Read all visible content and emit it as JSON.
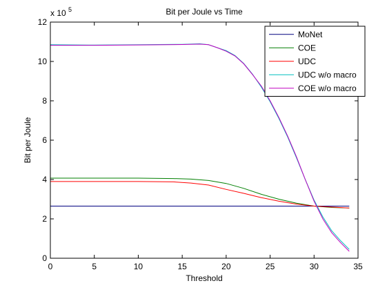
{
  "chart_data": {
    "type": "line",
    "title": "Bit per Joule vs Time",
    "xlabel": "Threshold",
    "ylabel": "Bit per Joule",
    "y_multiplier_label": "x 10",
    "y_multiplier_exponent": "5",
    "xlim": [
      0,
      35
    ],
    "ylim": [
      0,
      12
    ],
    "xticks": [
      0,
      5,
      10,
      15,
      20,
      25,
      30,
      35
    ],
    "yticks": [
      0,
      2,
      4,
      6,
      8,
      10,
      12
    ],
    "grid": false,
    "legend_position": "top-right",
    "series": [
      {
        "name": "MoNet",
        "color": "#00007f",
        "x": [
          0,
          34
        ],
        "y": [
          2.65,
          2.65
        ]
      },
      {
        "name": "COE",
        "color": "#007f00",
        "x": [
          0,
          5,
          10,
          14,
          16,
          18,
          20,
          22,
          24,
          26,
          28,
          30,
          32,
          34
        ],
        "y": [
          4.07,
          4.07,
          4.07,
          4.05,
          4.02,
          3.95,
          3.8,
          3.55,
          3.25,
          3.0,
          2.8,
          2.65,
          2.58,
          2.55
        ]
      },
      {
        "name": "UDC",
        "color": "#ff0000",
        "x": [
          0,
          5,
          10,
          14,
          16,
          18,
          20,
          22,
          24,
          26,
          28,
          30,
          32,
          34
        ],
        "y": [
          3.9,
          3.9,
          3.9,
          3.88,
          3.82,
          3.72,
          3.5,
          3.3,
          3.08,
          2.9,
          2.75,
          2.65,
          2.6,
          2.55
        ]
      },
      {
        "name": "UDC w/o macro",
        "color": "#00bfbf",
        "x": [
          0,
          5,
          10,
          15,
          17,
          18,
          19,
          20,
          21,
          22,
          23,
          24,
          25,
          26,
          27,
          28,
          29,
          30,
          31,
          32,
          33,
          34
        ],
        "y": [
          10.85,
          10.83,
          10.85,
          10.87,
          10.9,
          10.85,
          10.7,
          10.55,
          10.3,
          9.9,
          9.35,
          8.7,
          7.95,
          7.1,
          6.15,
          5.1,
          4.0,
          2.95,
          2.1,
          1.4,
          0.9,
          0.45
        ]
      },
      {
        "name": "COE w/o macro",
        "color": "#bf00bf",
        "x": [
          0,
          5,
          10,
          15,
          17,
          18,
          19,
          20,
          21,
          22,
          23,
          24,
          25,
          26,
          27,
          28,
          29,
          30,
          31,
          32,
          33,
          34
        ],
        "y": [
          10.82,
          10.82,
          10.84,
          10.86,
          10.88,
          10.85,
          10.7,
          10.52,
          10.28,
          9.88,
          9.33,
          8.75,
          8.0,
          7.15,
          6.2,
          5.15,
          4.0,
          2.9,
          2.0,
          1.3,
          0.8,
          0.35
        ]
      }
    ]
  }
}
